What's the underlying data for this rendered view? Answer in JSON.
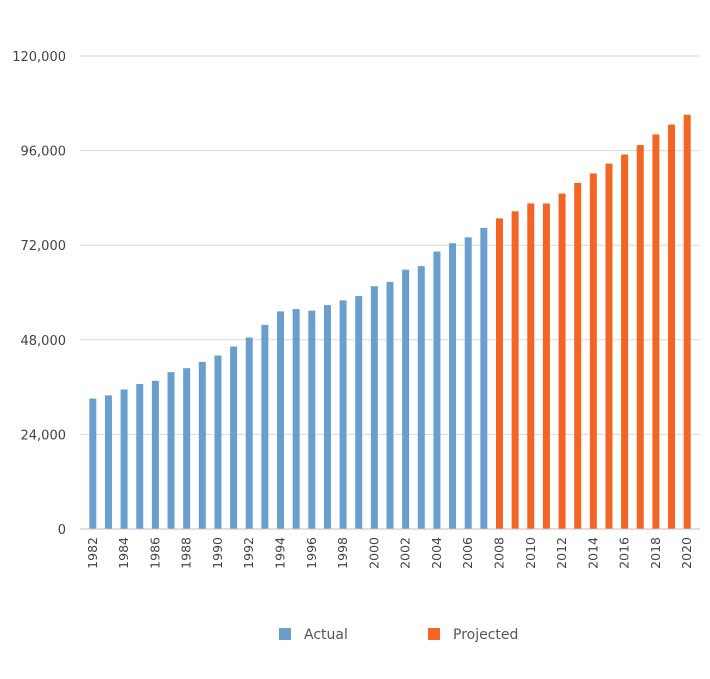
{
  "chart_data": {
    "type": "bar",
    "title": "",
    "xlabel": "",
    "ylabel": "",
    "ylim": [
      0,
      120000
    ],
    "yticks": [
      "0",
      "24,000",
      "48,000",
      "72,000",
      "96,000",
      "120,000"
    ],
    "grid": true,
    "legend_position": "bottom",
    "categories": [
      "1982",
      "1983",
      "1984",
      "1985",
      "1986",
      "1987",
      "1988",
      "1989",
      "1990",
      "1991",
      "1992",
      "1993",
      "1994",
      "1995",
      "1996",
      "1997",
      "1998",
      "1999",
      "2000",
      "2001",
      "2002",
      "2003",
      "2004",
      "2005",
      "2006",
      "2007",
      "2008",
      "2009",
      "2010",
      "2011",
      "2012",
      "2013",
      "2014",
      "2015",
      "2016",
      "2017",
      "2018",
      "2019",
      "2020"
    ],
    "x_tick_labels": [
      "1982",
      "1984",
      "1986",
      "1988",
      "1990",
      "1992",
      "1994",
      "1996",
      "1998",
      "2000",
      "2002",
      "2004",
      "2006",
      "2008",
      "2010",
      "2012",
      "2014",
      "2016",
      "2018",
      "2020"
    ],
    "series": [
      {
        "name": "Actual",
        "color": "#6a9fcd",
        "values": [
          33100,
          33900,
          35400,
          36800,
          37600,
          39800,
          40800,
          42400,
          44000,
          46300,
          48600,
          51800,
          55200,
          55800,
          55400,
          56800,
          58000,
          59100,
          61600,
          62700,
          65800,
          66700,
          70400,
          72500,
          74000,
          76400,
          null,
          null,
          null,
          null,
          null,
          null,
          null,
          null,
          null,
          null,
          null,
          null,
          null
        ]
      },
      {
        "name": "Projected",
        "color": "#f46524",
        "values": [
          null,
          null,
          null,
          null,
          null,
          null,
          null,
          null,
          null,
          null,
          null,
          null,
          null,
          null,
          null,
          null,
          null,
          null,
          null,
          null,
          null,
          null,
          null,
          null,
          null,
          null,
          78800,
          80600,
          82600,
          82600,
          85100,
          87800,
          90200,
          92700,
          95000,
          97400,
          100100,
          102600,
          105100
        ]
      }
    ]
  }
}
